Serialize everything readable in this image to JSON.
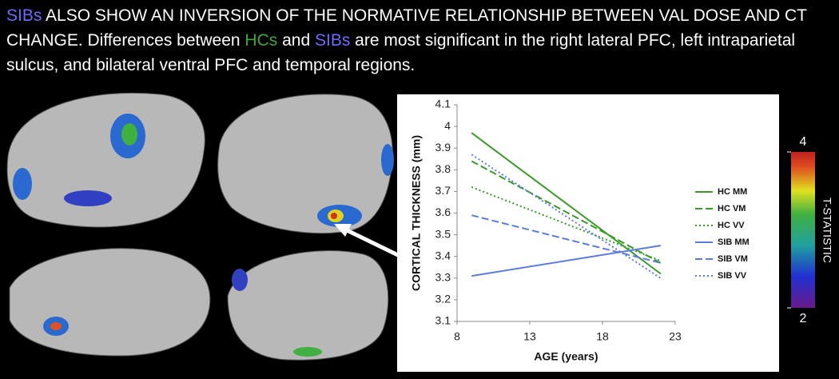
{
  "header": {
    "parts": [
      {
        "text": "SIBs",
        "color": "#6b6bff"
      },
      {
        "text": " ALSO SHOW AN INVERSION OF THE NORMATIVE RELATIONSHIP BETWEEN VAL DOSE AND CT CHANGE. Differences between ",
        "color": "#ffffff"
      },
      {
        "text": "HCs",
        "color": "#3fa63f"
      },
      {
        "text": " and ",
        "color": "#ffffff"
      },
      {
        "text": "SIBs",
        "color": "#6b6bff"
      },
      {
        "text": " are most significant in the right lateral PFC, left intraparietal sulcus, and bilateral ventral PFC and temporal regions.",
        "color": "#ffffff"
      }
    ]
  },
  "colorbar": {
    "title": "T-STATISTIC",
    "ticks": [
      4,
      2
    ]
  },
  "chart_data": {
    "type": "line",
    "x_label": "AGE (years)",
    "y_label": "CORTICAL THICKNESS (mm)",
    "x": [
      9,
      22
    ],
    "xlim": [
      8,
      23
    ],
    "xticks": [
      8,
      13,
      18,
      23
    ],
    "ylim": [
      3.1,
      4.1
    ],
    "yticks": [
      3.1,
      3.2,
      3.3,
      3.4,
      3.5,
      3.6,
      3.7,
      3.8,
      3.9,
      4,
      4.1
    ],
    "legend": "right",
    "series": [
      {
        "name": "HC MM",
        "color": "#3a9a2a",
        "dash": "solid",
        "values": [
          3.97,
          3.32
        ]
      },
      {
        "name": "HC VM",
        "color": "#3a9a2a",
        "dash": "dashed",
        "values": [
          3.84,
          3.37
        ]
      },
      {
        "name": "HC VV",
        "color": "#3a9a2a",
        "dash": "dotted",
        "values": [
          3.72,
          3.38
        ]
      },
      {
        "name": "SIB MM",
        "color": "#5b7be0",
        "dash": "solid",
        "values": [
          3.31,
          3.45
        ]
      },
      {
        "name": "SIB VM",
        "color": "#5b7be0",
        "dash": "dashed",
        "values": [
          3.59,
          3.37
        ]
      },
      {
        "name": "SIB VV",
        "color": "#5b7be0",
        "dash": "dotted",
        "values": [
          3.87,
          3.3
        ]
      }
    ]
  }
}
